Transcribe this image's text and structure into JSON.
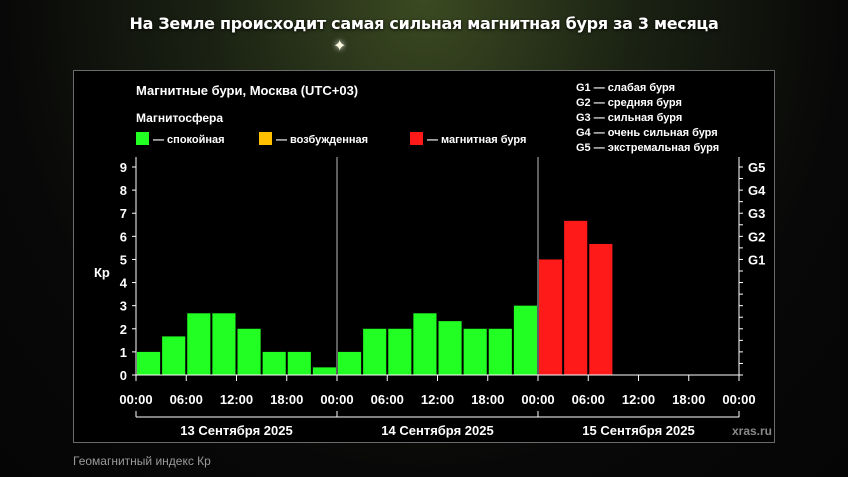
{
  "headline": "На Земле происходит самая сильная магнитная буря за 3 месяца",
  "caption": "Геомагнитный индекс Кр",
  "chart_data": {
    "type": "bar",
    "title": "Магнитные бури, Москва (UTC+03)",
    "legend_title": "Магнитосфера",
    "legend": [
      {
        "label": "— спокойная",
        "color": "#22ff22"
      },
      {
        "label": "— возбужденная",
        "color": "#ffc000"
      },
      {
        "label": "— магнитная буря",
        "color": "#ff1a1a"
      }
    ],
    "g_scale": [
      "G1 — слабая буря",
      "G2 — средняя буря",
      "G3 — сильная буря",
      "G4 — очень сильная буря",
      "G5 — экстремальная буря"
    ],
    "ylabel": "Кр",
    "ylim": [
      0,
      9
    ],
    "y_ticks": [
      "0",
      "1",
      "2",
      "3",
      "4",
      "5",
      "6",
      "7",
      "8",
      "9"
    ],
    "right_ticks": [
      {
        "label": "G1",
        "value": 5
      },
      {
        "label": "G2",
        "value": 6
      },
      {
        "label": "G3",
        "value": 7
      },
      {
        "label": "G4",
        "value": 8
      },
      {
        "label": "G5",
        "value": 9
      }
    ],
    "x_ticks": [
      "00:00",
      "06:00",
      "12:00",
      "18:00",
      "00:00",
      "06:00",
      "12:00",
      "18:00",
      "00:00",
      "06:00",
      "12:00",
      "18:00",
      "00:00"
    ],
    "days": [
      "13 Сентября 2025",
      "14 Сентября 2025",
      "15 Сентября 2025"
    ],
    "intervals_per_day": 8,
    "values": [
      1.0,
      1.67,
      2.67,
      2.67,
      2.0,
      1.0,
      1.0,
      0.33,
      1.0,
      2.0,
      2.0,
      2.67,
      2.33,
      2.0,
      2.0,
      3.0,
      5.0,
      6.67,
      5.67
    ],
    "colors": {
      "quiet": "#22ff22",
      "active": "#ffc000",
      "storm": "#ff1a1a",
      "axis": "#ffffff",
      "grid": "#555555",
      "text": "#ffffff",
      "watermark": "#8a8a8a"
    },
    "watermark": "xras.ru"
  }
}
